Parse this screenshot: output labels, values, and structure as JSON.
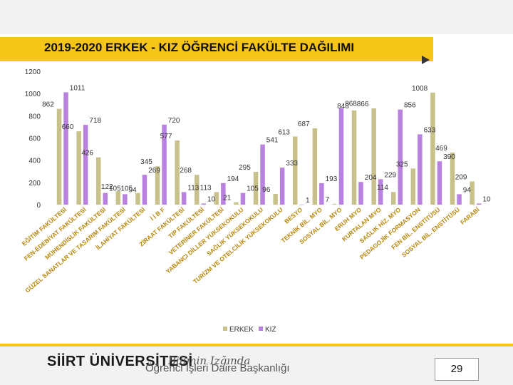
{
  "header": {
    "title": "2019-2020 ERKEK - KIZ  ÖĞRENCİ FAKÜLTE DAĞILIMI"
  },
  "footer": {
    "university": "SİİRT ÜNİVERSİTESİ",
    "motto": "Bilimin Izğında",
    "department": "Öğrenci İşleri Daire Başkanlığı",
    "page_number": "29"
  },
  "chart_data": {
    "type": "bar",
    "title": "2019-2020 ERKEK - KIZ  ÖĞRENCİ FAKÜLTE DAĞILIMI",
    "categories": [
      "EĞİTİM FAKÜLTESİ",
      "FEN-EDEBİYAT FAKÜLTESİ",
      "MÜHENDİSLİK FAKÜLTESİ",
      "GÜZEL SANATLAR VE TASARIM FAKÜLTESİ",
      "İLAHİYAT FAKÜLTESİ",
      "İ İ B F",
      "ZİRAAT FAKÜLTESİ",
      "TIP FAKÜLTESİ",
      "VETERİNER FAKÜLTESİ",
      "YABANCI DİLLER YÜKSEKOKULU",
      "SAĞLIK YÜKSEKOKULU",
      "TURİZM VE OTELCİLİK YÜKSEKOKULU",
      "BESYO",
      "TEKNİK BİL. MYO",
      "SOSYAL BİL. MYO",
      "ERUH MYO",
      "KURTALAN MYO",
      "SAĞLIK HİZ. MYO",
      "PEDAGOJİK FORMASYON",
      "FEN BİL. ENSTİTÜSÜ",
      "SOSYAL BİL. ENSTİTÜSÜ",
      "FARABİ"
    ],
    "series": [
      {
        "name": "ERKEK",
        "values": [
          862,
          660,
          426,
          122,
          105,
          345,
          577,
          268,
          113,
          21,
          295,
          96,
          613,
          687,
          7,
          848,
          866,
          114,
          325,
          1008,
          469,
          209
        ]
      },
      {
        "name": "KIZ",
        "values": [
          1011,
          718,
          105,
          94,
          269,
          720,
          113,
          10,
          194,
          105,
          541,
          333,
          1,
          193,
          868,
          204,
          229,
          856,
          633,
          390,
          94,
          10
        ]
      }
    ],
    "ylim": [
      0,
      1200
    ],
    "yticks": [
      0,
      200,
      400,
      600,
      800,
      1000,
      1200
    ],
    "colors": {
      "ERKEK": "#c9c18b",
      "KIZ": "#b981e0"
    },
    "legend": "bottom",
    "grid": false
  }
}
